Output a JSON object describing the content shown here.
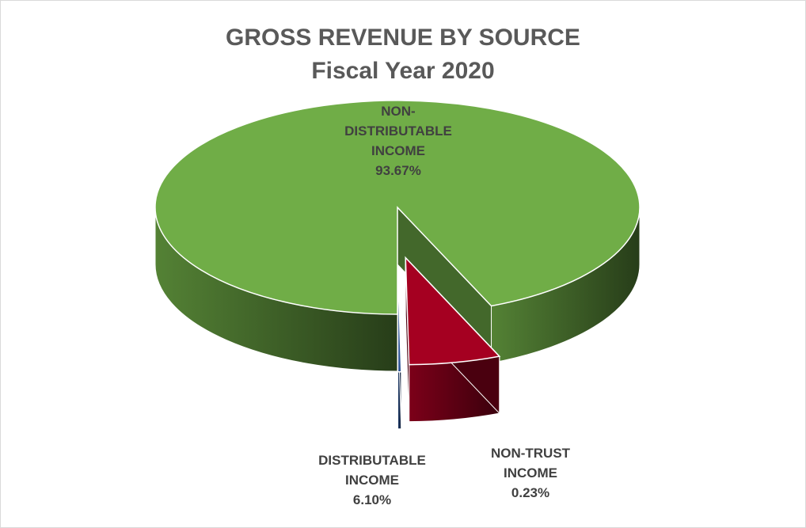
{
  "chart_data": {
    "type": "pie",
    "title": "GROSS REVENUE BY SOURCE",
    "subtitle": "Fiscal Year 2020",
    "slices": [
      {
        "label_lines": [
          "NON-",
          "DISTRIBUTABLE",
          "INCOME"
        ],
        "value": 93.67,
        "value_label": "93.67%",
        "color": "#70ad47",
        "exploded": false
      },
      {
        "label_lines": [
          "DISTRIBUTABLE",
          "INCOME"
        ],
        "value": 6.1,
        "value_label": "6.10%",
        "color": "#a50021",
        "exploded": true
      },
      {
        "label_lines": [
          "NON-TRUST",
          "INCOME"
        ],
        "value": 0.23,
        "value_label": "0.23%",
        "color": "#2f5597",
        "exploded": true
      }
    ],
    "style": "3d-pie"
  }
}
